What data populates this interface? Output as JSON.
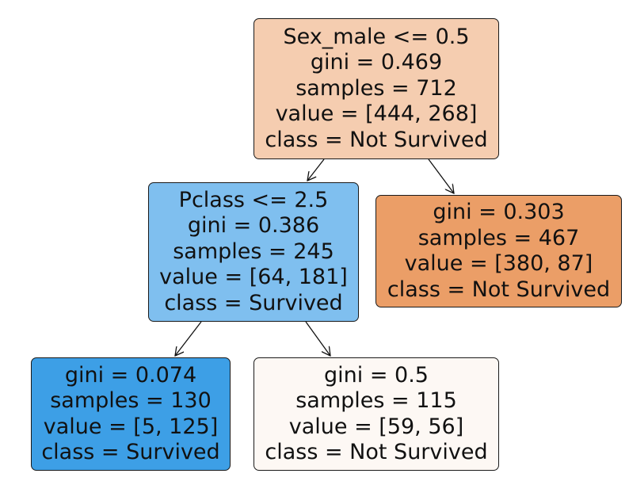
{
  "nodes": {
    "root": {
      "lines": [
        "Sex_male <= 0.5",
        "gini = 0.469",
        "samples = 712",
        "value = [444, 268]",
        "class = Not Survived"
      ],
      "fill": "#f5cdb0"
    },
    "left": {
      "lines": [
        "Pclass <= 2.5",
        "gini = 0.386",
        "samples = 245",
        "value = [64, 181]",
        "class = Survived"
      ],
      "fill": "#7fbfef"
    },
    "right": {
      "lines": [
        "gini = 0.303",
        "samples = 467",
        "value = [380, 87]",
        "class = Not Survived"
      ],
      "fill": "#eb9e67"
    },
    "left_left": {
      "lines": [
        "gini = 0.074",
        "samples = 130",
        "value = [5, 125]",
        "class = Survived"
      ],
      "fill": "#3d9fe6"
    },
    "left_right": {
      "lines": [
        "gini = 0.5",
        "samples = 115",
        "value = [59, 56]",
        "class = Not Survived"
      ],
      "fill": "#fdf8f4"
    }
  }
}
